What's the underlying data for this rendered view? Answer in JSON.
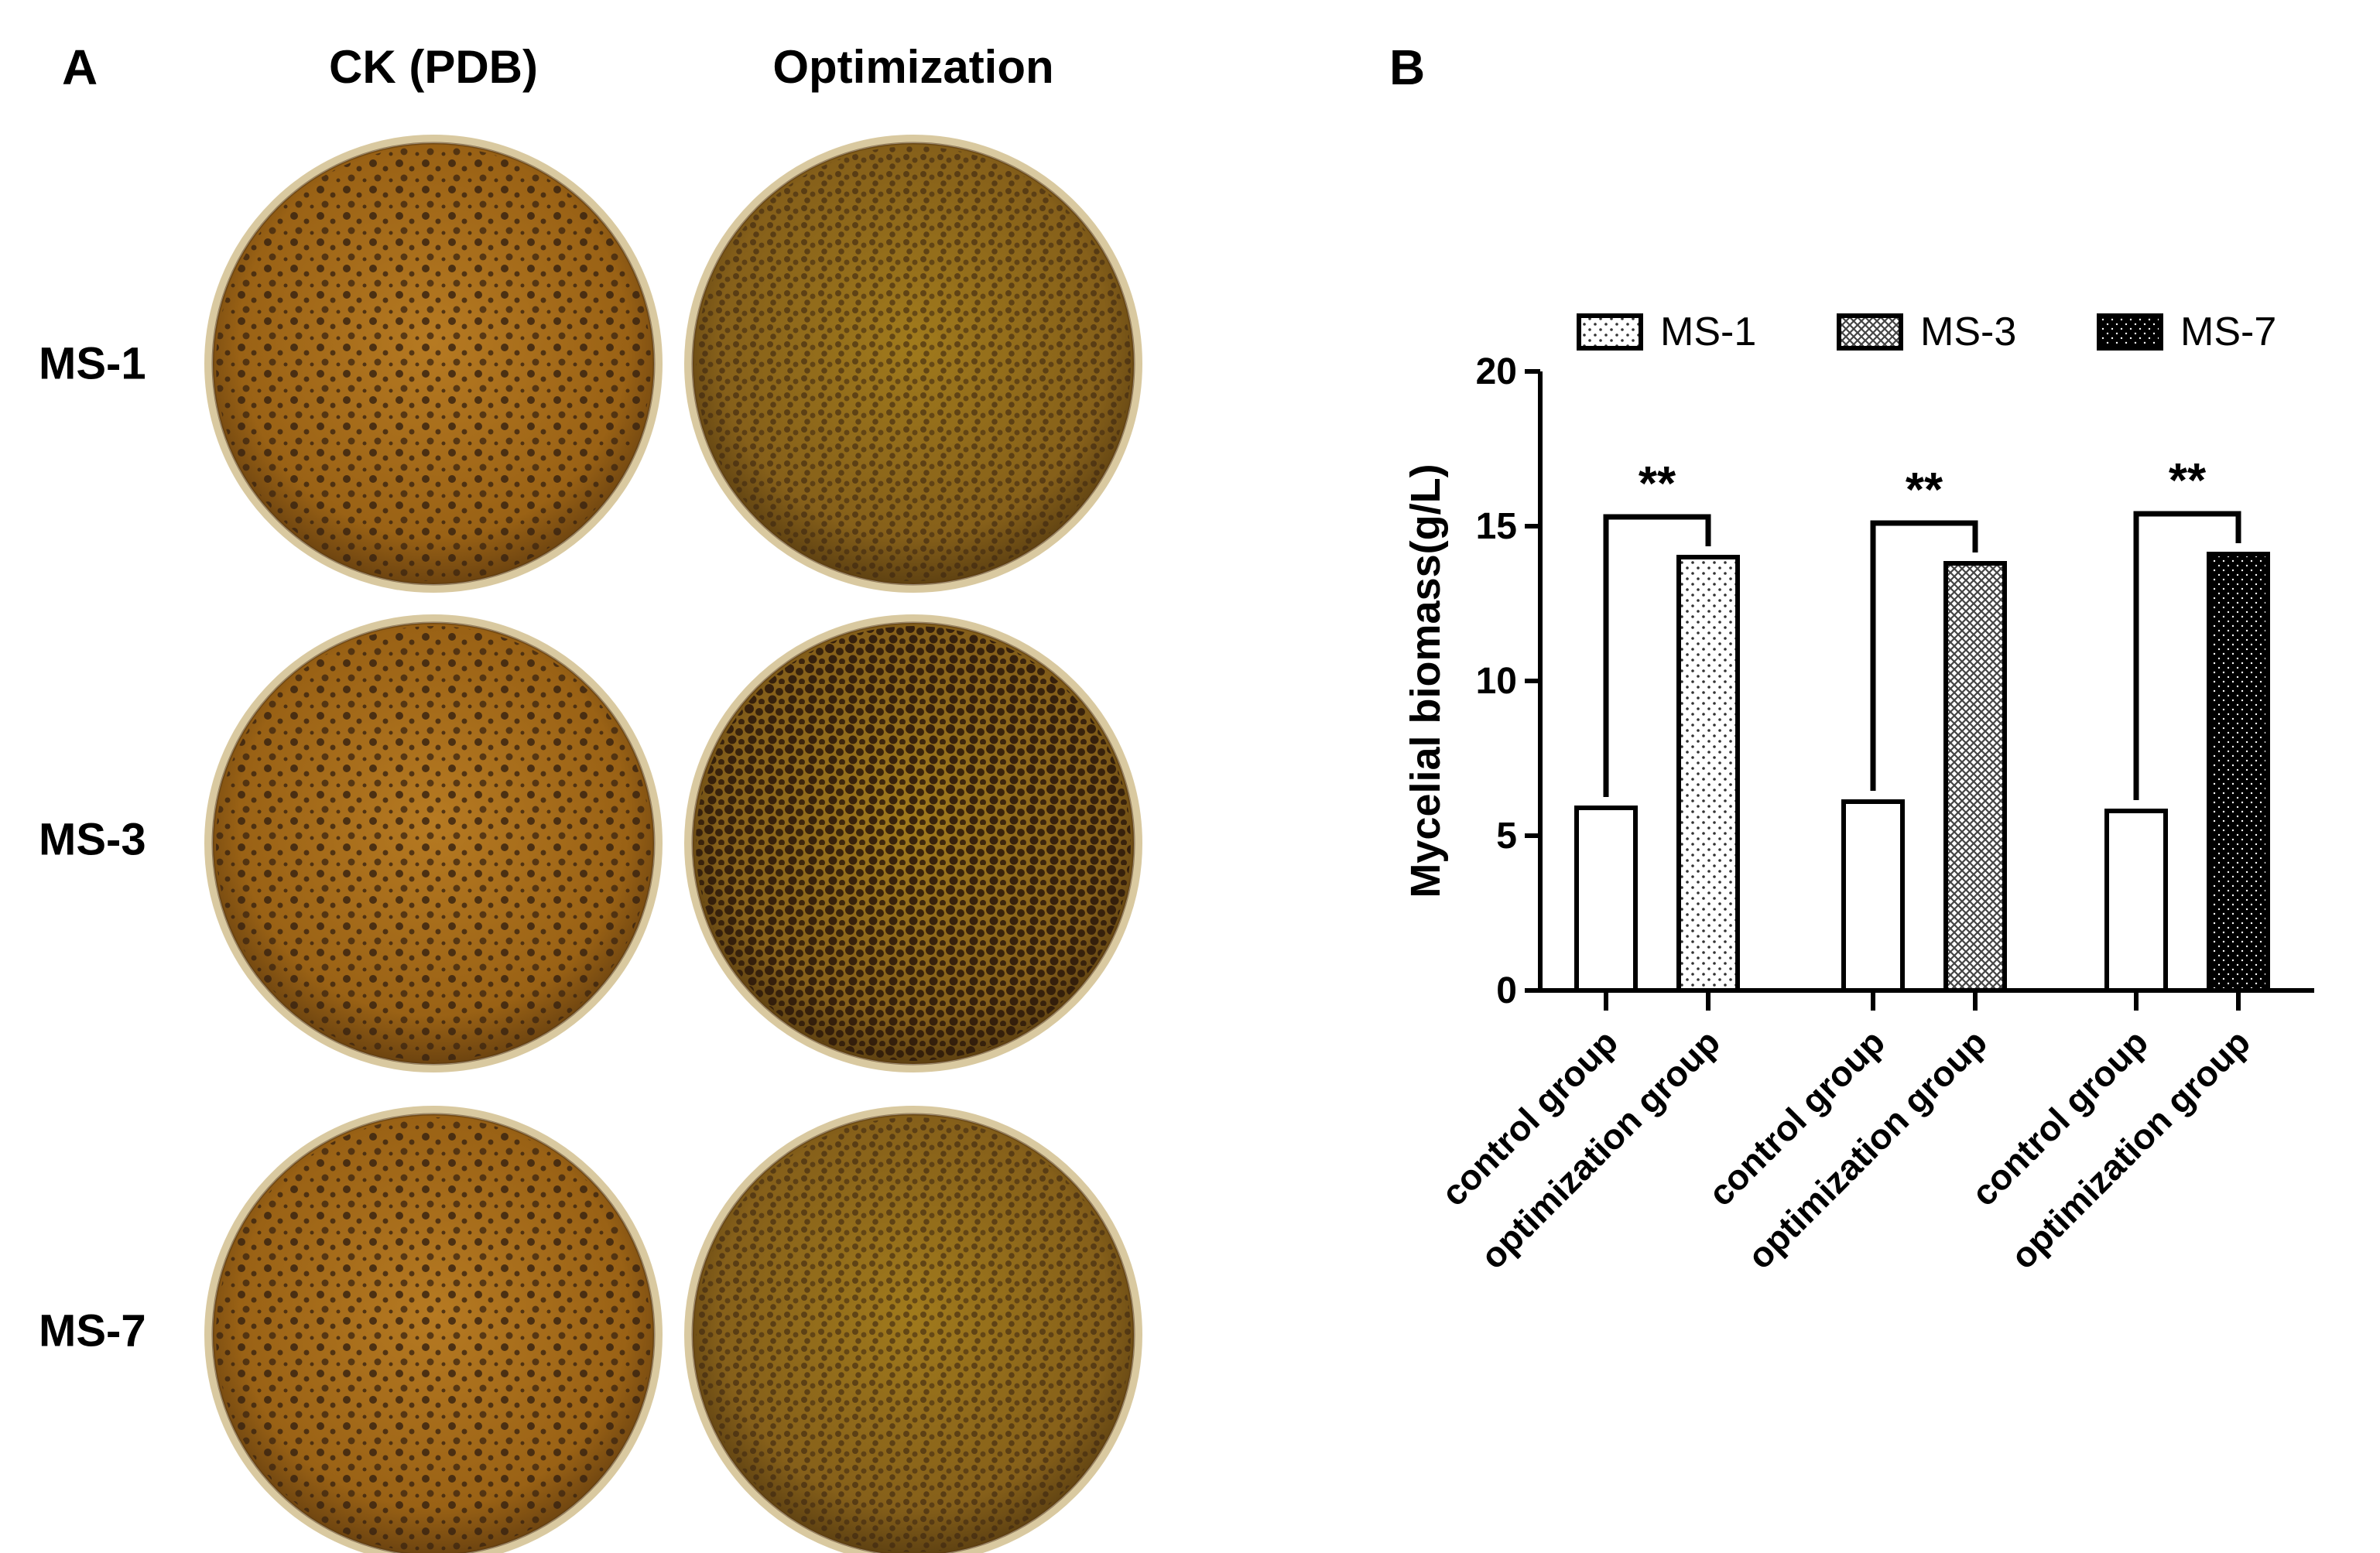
{
  "panel_a": {
    "letter": "A",
    "columns": [
      "CK (PDB)",
      "Optimization"
    ],
    "rows": [
      "MS-1",
      "MS-3",
      "MS-7"
    ]
  },
  "panel_b": {
    "letter": "B"
  },
  "colors": {
    "plate_bg_ck": "#a86d18",
    "plate_bg_opt": "#8f6416",
    "colony": "#3b2410",
    "rim": "#d9c9a0"
  },
  "chart_data": {
    "type": "bar",
    "title": "",
    "xlabel": "",
    "ylabel": "Mycelial biomass(g/L)",
    "ylim": [
      0,
      20
    ],
    "yticks": [
      0,
      5,
      10,
      15,
      20
    ],
    "groups": [
      {
        "name": "MS-1",
        "pattern": "sparse-dots",
        "bars": [
          {
            "category": "control group",
            "value": 5.9
          },
          {
            "category": "optimization group",
            "value": 14.0
          }
        ],
        "significance": "**"
      },
      {
        "name": "MS-3",
        "pattern": "crosshatch",
        "bars": [
          {
            "category": "control group",
            "value": 6.1
          },
          {
            "category": "optimization group",
            "value": 13.8
          }
        ],
        "significance": "**"
      },
      {
        "name": "MS-7",
        "pattern": "dense-black",
        "bars": [
          {
            "category": "control group",
            "value": 5.8
          },
          {
            "category": "optimization group",
            "value": 14.1
          }
        ],
        "significance": "**"
      }
    ],
    "legend": {
      "position": "top",
      "entries": [
        "MS-1",
        "MS-3",
        "MS-7"
      ]
    },
    "grid": false
  }
}
